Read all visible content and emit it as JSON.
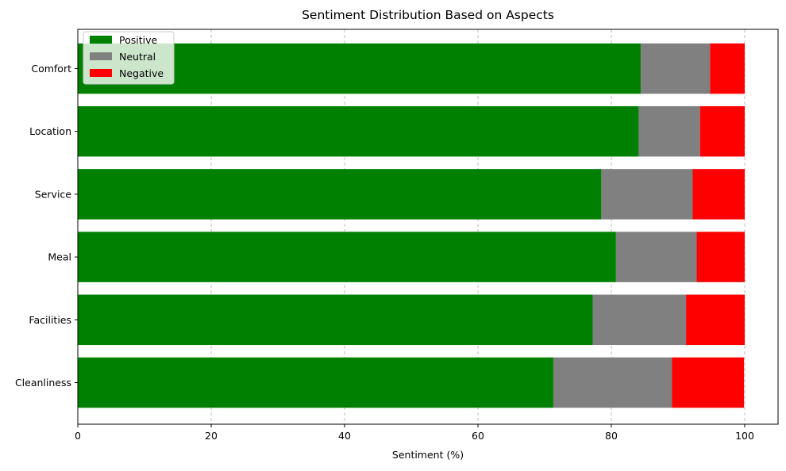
{
  "chart_data": {
    "type": "bar",
    "orientation": "horizontal",
    "stacked": true,
    "title": "Sentiment Distribution Based on Aspects",
    "xlabel": "Sentiment (%)",
    "ylabel": "",
    "xlim": [
      0,
      105
    ],
    "xticks": [
      0,
      20,
      40,
      60,
      80,
      100
    ],
    "grid": "x-dashed",
    "legend": "top-left",
    "categories": [
      "Cleanliness",
      "Facilities",
      "Meal",
      "Service",
      "Location",
      "Comfort"
    ],
    "series": [
      {
        "name": "Positive",
        "color": "#008000",
        "values": [
          71.3,
          77.2,
          80.7,
          78.5,
          84.1,
          84.4
        ]
      },
      {
        "name": "Neutral",
        "color": "#808080",
        "values": [
          17.8,
          14.0,
          12.1,
          13.7,
          9.2,
          10.4
        ]
      },
      {
        "name": "Negative",
        "color": "#ff0000",
        "values": [
          10.8,
          8.8,
          7.2,
          7.8,
          6.7,
          5.2
        ]
      }
    ]
  }
}
